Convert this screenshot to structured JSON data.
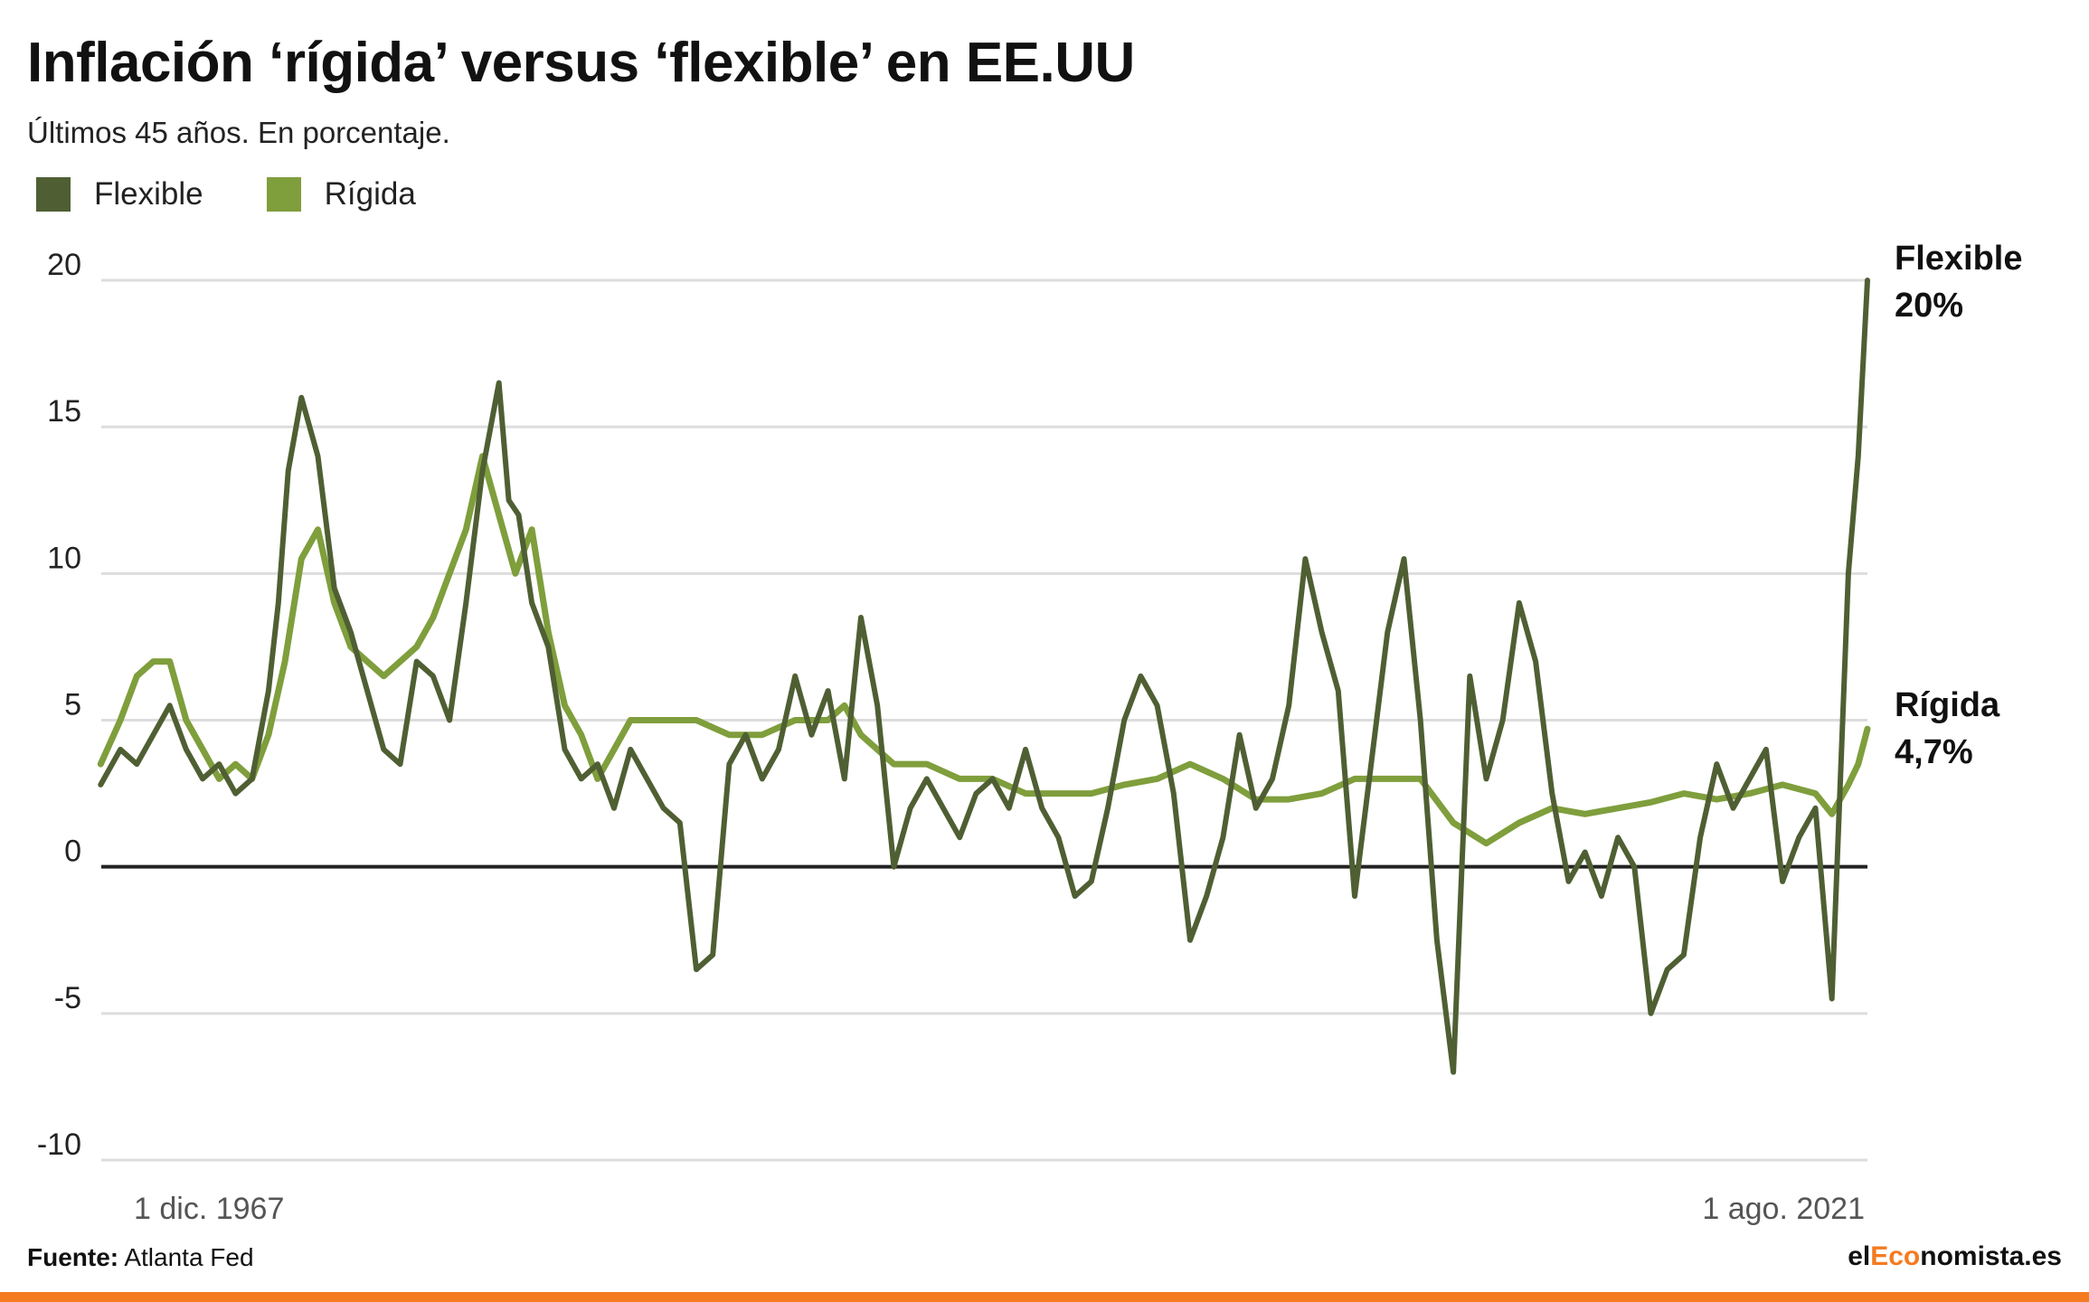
{
  "colors": {
    "flexible": "#4f5f33",
    "rigida": "#7f9e3c",
    "accent": "#f47b20",
    "grid": "#dddddd",
    "zero": "#222222"
  },
  "header": {
    "title": "Inflación ‘rígida’ versus ‘flexible’ en EE.UU",
    "subtitle": "Últimos 45 años. En porcentaje."
  },
  "legend": {
    "flexible": "Flexible",
    "rigida": "Rígida"
  },
  "end_labels": {
    "flexible_name": "Flexible",
    "flexible_value": "20%",
    "rigida_name": "Rígida",
    "rigida_value": "4,7%"
  },
  "footer": {
    "source_label": "Fuente:",
    "source": "Atlanta Fed",
    "brand_a": "el",
    "brand_b": "Eco",
    "brand_c": "nomista.es"
  },
  "chart_data": {
    "type": "line",
    "title": "Inflación ‘rígida’ versus ‘flexible’ en EE.UU",
    "subtitle": "Últimos 45 años. En porcentaje.",
    "xlabel": "",
    "ylabel": "",
    "x_tick_labels": [
      "1 dic. 1967",
      "1 ago. 2021"
    ],
    "x_range": [
      1967.92,
      2021.58
    ],
    "ylim": [
      -10,
      20
    ],
    "y_ticks": [
      20,
      15,
      10,
      5,
      0,
      -5,
      -10
    ],
    "grid": true,
    "legend_position": "top-left",
    "series": [
      {
        "name": "Flexible",
        "x": [
          1967.9,
          1968.5,
          1969.0,
          1969.5,
          1970.0,
          1970.5,
          1971.0,
          1971.5,
          1972.0,
          1972.5,
          1973.0,
          1973.3,
          1973.6,
          1974.0,
          1974.5,
          1975.0,
          1975.5,
          1976.0,
          1976.5,
          1977.0,
          1977.5,
          1978.0,
          1978.5,
          1979.0,
          1979.5,
          1980.0,
          1980.3,
          1980.6,
          1981.0,
          1981.5,
          1982.0,
          1982.5,
          1983.0,
          1983.5,
          1984.0,
          1984.5,
          1985.0,
          1985.5,
          1986.0,
          1986.5,
          1987.0,
          1987.5,
          1988.0,
          1988.5,
          1989.0,
          1989.5,
          1990.0,
          1990.5,
          1991.0,
          1991.5,
          1992.0,
          1992.5,
          1993.0,
          1993.5,
          1994.0,
          1994.5,
          1995.0,
          1995.5,
          1996.0,
          1996.5,
          1997.0,
          1997.5,
          1998.0,
          1998.5,
          1999.0,
          1999.5,
          2000.0,
          2000.5,
          2001.0,
          2001.5,
          2002.0,
          2002.5,
          2003.0,
          2003.5,
          2004.0,
          2004.5,
          2005.0,
          2005.5,
          2006.0,
          2006.5,
          2007.0,
          2007.5,
          2008.0,
          2008.5,
          2009.0,
          2009.5,
          2010.0,
          2010.5,
          2011.0,
          2011.5,
          2012.0,
          2012.5,
          2013.0,
          2013.5,
          2014.0,
          2014.5,
          2015.0,
          2015.5,
          2016.0,
          2016.5,
          2017.0,
          2017.5,
          2018.0,
          2018.5,
          2019.0,
          2019.5,
          2020.0,
          2020.5,
          2021.0,
          2021.3,
          2021.58
        ],
        "values": [
          2.8,
          4.0,
          3.5,
          4.5,
          5.5,
          4.0,
          3.0,
          3.5,
          2.5,
          3.0,
          6.0,
          9.0,
          13.5,
          16.0,
          14.0,
          9.5,
          8.0,
          6.0,
          4.0,
          3.5,
          7.0,
          6.5,
          5.0,
          9.0,
          13.5,
          16.5,
          12.5,
          12.0,
          9.0,
          7.5,
          4.0,
          3.0,
          3.5,
          2.0,
          4.0,
          3.0,
          2.0,
          1.5,
          -3.5,
          -3.0,
          3.5,
          4.5,
          3.0,
          4.0,
          6.5,
          4.5,
          6.0,
          3.0,
          8.5,
          5.5,
          0.0,
          2.0,
          3.0,
          2.0,
          1.0,
          2.5,
          3.0,
          2.0,
          4.0,
          2.0,
          1.0,
          -1.0,
          -0.5,
          2.0,
          5.0,
          6.5,
          5.5,
          2.5,
          -2.5,
          -1.0,
          1.0,
          4.5,
          2.0,
          3.0,
          5.5,
          10.5,
          8.0,
          6.0,
          -1.0,
          3.5,
          8.0,
          10.5,
          5.0,
          -2.5,
          -7.0,
          6.5,
          3.0,
          5.0,
          9.0,
          7.0,
          2.5,
          -0.5,
          0.5,
          -1.0,
          1.0,
          0.0,
          -5.0,
          -3.5,
          -3.0,
          1.0,
          3.5,
          2.0,
          3.0,
          4.0,
          -0.5,
          1.0,
          2.0,
          -4.5,
          10.0,
          14.0,
          20.0
        ]
      },
      {
        "name": "Rígida",
        "x": [
          1967.9,
          1968.5,
          1969.0,
          1969.5,
          1970.0,
          1970.5,
          1971.0,
          1971.5,
          1972.0,
          1972.5,
          1973.0,
          1973.5,
          1974.0,
          1974.5,
          1975.0,
          1975.5,
          1976.0,
          1976.5,
          1977.0,
          1977.5,
          1978.0,
          1978.5,
          1979.0,
          1979.5,
          1980.0,
          1980.5,
          1981.0,
          1981.5,
          1982.0,
          1982.5,
          1983.0,
          1984.0,
          1985.0,
          1986.0,
          1987.0,
          1988.0,
          1989.0,
          1990.0,
          1990.5,
          1991.0,
          1992.0,
          1993.0,
          1994.0,
          1995.0,
          1996.0,
          1997.0,
          1998.0,
          1999.0,
          2000.0,
          2001.0,
          2002.0,
          2003.0,
          2004.0,
          2005.0,
          2006.0,
          2007.0,
          2008.0,
          2009.0,
          2010.0,
          2011.0,
          2012.0,
          2013.0,
          2014.0,
          2015.0,
          2016.0,
          2017.0,
          2018.0,
          2019.0,
          2020.0,
          2020.5,
          2021.0,
          2021.3,
          2021.58
        ],
        "values": [
          3.5,
          5.0,
          6.5,
          7.0,
          7.0,
          5.0,
          4.0,
          3.0,
          3.5,
          3.0,
          4.5,
          7.0,
          10.5,
          11.5,
          9.0,
          7.5,
          7.0,
          6.5,
          7.0,
          7.5,
          8.5,
          10.0,
          11.5,
          14.0,
          12.0,
          10.0,
          11.5,
          8.0,
          5.5,
          4.5,
          3.0,
          5.0,
          5.0,
          5.0,
          4.5,
          4.5,
          5.0,
          5.0,
          5.5,
          4.5,
          3.5,
          3.5,
          3.0,
          3.0,
          2.5,
          2.5,
          2.5,
          2.8,
          3.0,
          3.5,
          3.0,
          2.3,
          2.3,
          2.5,
          3.0,
          3.0,
          3.0,
          1.5,
          0.8,
          1.5,
          2.0,
          1.8,
          2.0,
          2.2,
          2.5,
          2.3,
          2.5,
          2.8,
          2.5,
          1.8,
          2.8,
          3.5,
          4.7
        ]
      }
    ]
  }
}
